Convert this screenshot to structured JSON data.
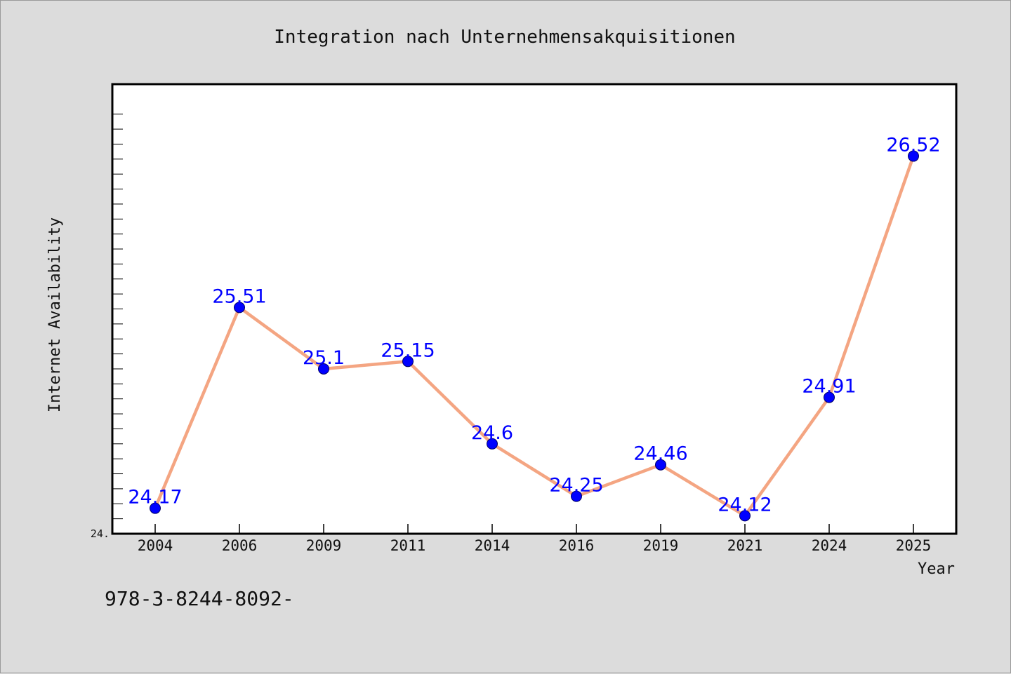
{
  "chart_data": {
    "type": "line",
    "title": "Integration nach Unternehmensakquisitionen",
    "xlabel": "Year",
    "ylabel": "Internet Availability",
    "categories": [
      "2004",
      "2006",
      "2009",
      "2011",
      "2014",
      "2016",
      "2019",
      "2021",
      "2024",
      "2025"
    ],
    "series": [
      {
        "values": [
          24.17,
          25.51,
          25.1,
          25.15,
          24.6,
          24.25,
          24.46,
          24.12,
          24.91,
          26.52
        ],
        "line_color": "#f4a582",
        "marker_color": "#0000ff"
      }
    ],
    "data_labels": [
      "24.17",
      "25.51",
      "25.1",
      "25.15",
      "24.6",
      "24.25",
      "24.46",
      "24.12",
      "24.91",
      "26.52"
    ],
    "y_tick_labels": [
      "24."
    ],
    "ylim": [
      24.0,
      27.0
    ],
    "grid": false,
    "legend": false
  },
  "footnote": "978-3-8244-8092-"
}
